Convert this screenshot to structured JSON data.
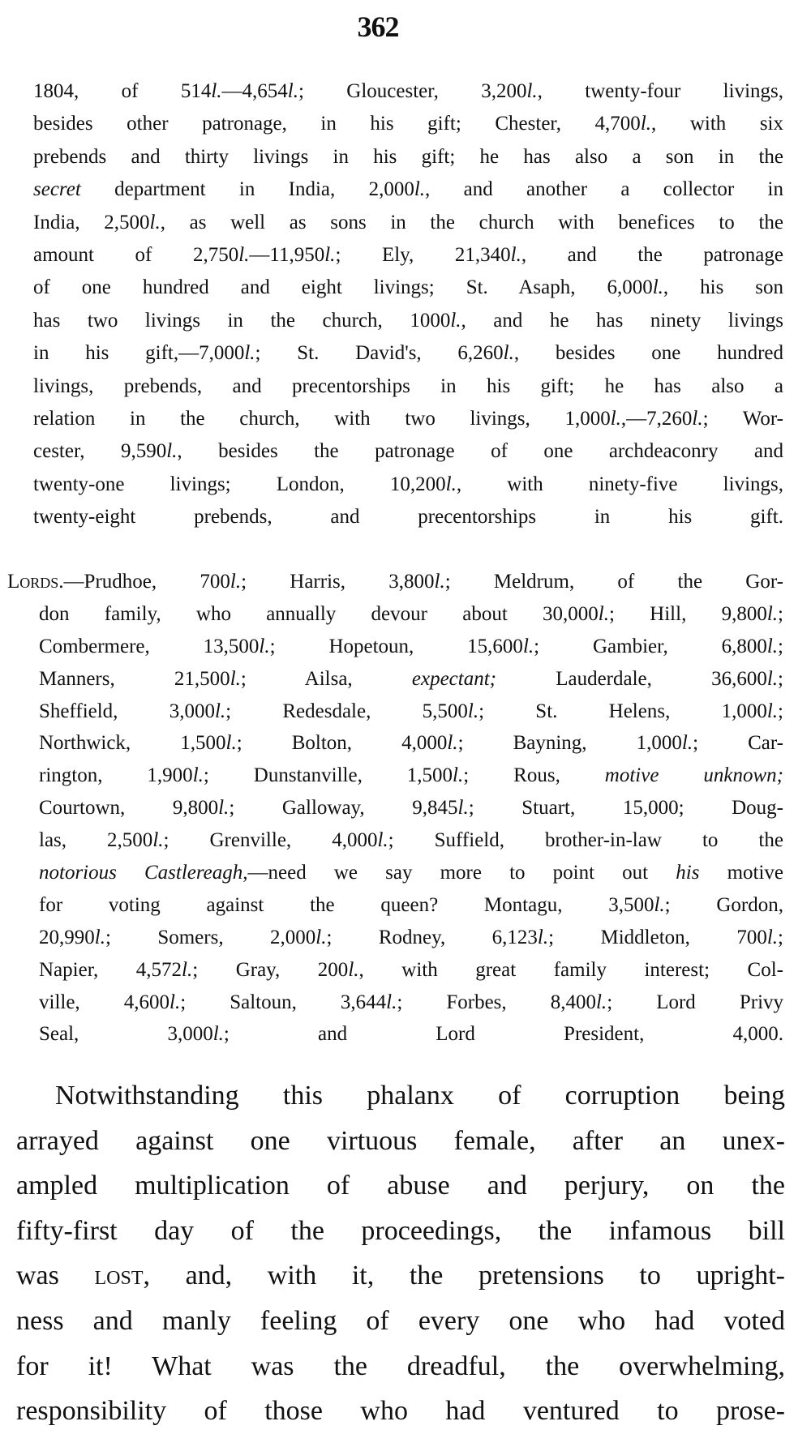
{
  "page_number": "362",
  "bishops_paragraph": [
    "1804, of 514l.—4,654l.; Gloucester, 3,200l., twenty-four livings,",
    "besides other patronage, in his gift; Chester, 4,700l., with six",
    "prebends and thirty livings in his gift; he has also a son in the",
    "*secret* department in India, 2,000l., and another a collector in",
    "India, 2,500l., as well as sons in the church with benefices to the",
    "amount of 2,750l.—11,950l.; Ely, 21,340l., and the patronage",
    "of one hundred and eight livings; St. Asaph, 6,000l., his son",
    "has two livings in the church, 1000l., and he has ninety livings",
    "in his gift,—7,000l.; St. David's, 6,260l., besides one hundred",
    "livings, prebends, and precentorships in his gift; he has also a",
    "relation in the church, with two livings, 1,000l.,—7,260l.; Wor-",
    "cester, 9,590l., besides the patronage of one archdeaconry and",
    "twenty-one livings; London, 10,200l., with ninety-five livings,",
    "twenty-eight prebends, and precentorships in his gift."
  ],
  "lords_paragraph": [
    "^Lords.^—Prudhoe, 700l.; Harris, 3,800l.; Meldrum, of the Gor-",
    "don family, who annually devour about 30,000l.; Hill, 9,800l.;",
    "Combermere, 13,500l.; Hopetoun, 15,600l.; Gambier, 6,800l.;",
    "Manners, 21,500l.; Ailsa, *expectant;* Lauderdale, 36,600l.;",
    "Sheffield, 3,000l.; Redesdale, 5,500l.; St. Helens, 1,000l.;",
    "Northwick, 1,500l.; Bolton, 4,000l.; Bayning, 1,000l.; Car-",
    "rington, 1,900l.; Dunstanville, 1,500l.; Rous, *motive unknown;*",
    "Courtown, 9,800l.; Galloway, 9,845l.; Stuart, 15,000; Doug-",
    "las, 2,500l.; Grenville, 4,000l.; Suffield, brother-in-law to the",
    "*notorious Castlereagh,*—need we say more to point out *his* motive",
    "for voting against the queen? Montagu, 3,500l.; Gordon,",
    "20,990l.; Somers, 2,000l.; Rodney, 6,123l.; Middleton, 700l.;",
    "Napier, 4,572l.; Gray, 200l., with great family interest; Col-",
    "ville, 4,600l.; Saltoun, 3,644l.; Forbes, 8,400l.; Lord Privy",
    "Seal, 3,000l.; and Lord President, 4,000."
  ],
  "closing_paragraph": [
    "Notwithstanding this phalanx of corruption being",
    "arrayed against one virtuous female, after an unex-",
    "ampled multiplication of abuse and perjury, on the",
    "fifty-first day of the proceedings, the infamous bill",
    "was ^lost^, and, with it, the pretensions to upright-",
    "ness and manly feeling of every one who had voted",
    "for it! What was the dreadful, the overwhelming,",
    "responsibility of those who had ventured to prose-"
  ]
}
